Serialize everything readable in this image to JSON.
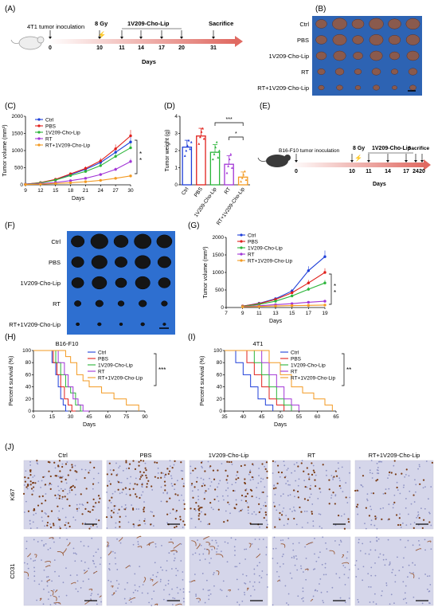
{
  "panel_labels": [
    "(A)",
    "(B)",
    "(C)",
    "(D)",
    "(E)",
    "(F)",
    "(G)",
    "(H)",
    "(I)",
    "(J)"
  ],
  "scheme_a": {
    "inoculation": "4T1 tumor inoculation",
    "dose": "8 Gy",
    "treatment": "1V209-Cho-Lip",
    "end": "Sacrifice",
    "days": [
      "0",
      "10",
      "11",
      "14",
      "17",
      "20",
      "31"
    ],
    "days_label": "Days"
  },
  "scheme_e": {
    "inoculation": "B16-F10 tumor inoculation",
    "dose": "8 Gy",
    "treatment": "1V209-Cho-Lip",
    "end": "Sacrifice",
    "days": [
      "0",
      "10",
      "11",
      "14",
      "17",
      "20",
      "24"
    ],
    "days_label": "Days"
  },
  "groups": [
    "Ctrl",
    "PBS",
    "1V209-Cho-Lip",
    "RT",
    "RT+1V209-Cho-Lip"
  ],
  "colors": {
    "Ctrl": "#1f3fd9",
    "PBS": "#e0201b",
    "1V209-Cho-Lip": "#2bb53a",
    "RT": "#a236d6",
    "RT+1V209-Cho-Lip": "#f39a22",
    "arrow": "#e06a62",
    "photo_bg_b": "#2d63b3",
    "photo_bg_f": "#2e6fd0"
  },
  "photo_b": {
    "rows": [
      "Ctrl",
      "PBS",
      "1V209-Cho-Lip",
      "RT",
      "RT+1V209-Cho-Lip"
    ],
    "tumors": [
      1.0,
      0.95,
      0.85,
      0.6,
      0.45
    ]
  },
  "photo_f": {
    "rows": [
      "Ctrl",
      "PBS",
      "1V209-Cho-Lip",
      "RT",
      "RT+1V209-Cho-Lip"
    ],
    "tumors": [
      1.0,
      0.9,
      0.85,
      0.45,
      0.22
    ]
  },
  "ihc": {
    "columns": [
      "Ctrl",
      "PBS",
      "1V209-Cho-Lip",
      "RT",
      "RT+1V209-Cho-Lip"
    ],
    "rows": [
      "Ki67",
      "CD31"
    ],
    "ki67_density": [
      0.9,
      0.85,
      0.7,
      0.45,
      0.3
    ],
    "cd31_density": [
      0.8,
      0.75,
      0.55,
      0.3,
      0.1
    ]
  },
  "chart_data": [
    {
      "id": "C",
      "type": "line",
      "xlabel": "Days",
      "ylabel": "Tumor volume (mm³)",
      "xlim": [
        9,
        30
      ],
      "ylim": [
        0,
        2000
      ],
      "xticks": [
        "9",
        "12",
        "15",
        "18",
        "21",
        "24",
        "27",
        "30"
      ],
      "yticks": [
        "0",
        "500",
        "1000",
        "1500",
        "2000"
      ],
      "x": [
        9,
        12,
        15,
        18,
        21,
        24,
        27,
        30
      ],
      "series": [
        {
          "name": "Ctrl",
          "values": [
            20,
            60,
            150,
            300,
            450,
            650,
            950,
            1250
          ]
        },
        {
          "name": "PBS",
          "values": [
            20,
            65,
            160,
            320,
            480,
            700,
            1050,
            1430
          ]
        },
        {
          "name": "1V209-Cho-Lip",
          "values": [
            20,
            55,
            140,
            270,
            390,
            560,
            830,
            1080
          ]
        },
        {
          "name": "RT",
          "values": [
            15,
            35,
            70,
            120,
            190,
            300,
            450,
            680
          ]
        },
        {
          "name": "RT+1V209-Cho-Lip",
          "values": [
            10,
            20,
            40,
            60,
            90,
            130,
            190,
            260
          ]
        }
      ],
      "significance": [
        "*",
        "*"
      ],
      "legend": "top-left"
    },
    {
      "id": "D",
      "type": "bar",
      "ylabel": "Tumor weight (g)",
      "ylim": [
        0,
        4
      ],
      "yticks": [
        "0",
        "1",
        "2",
        "3",
        "4"
      ],
      "categories": [
        "Ctrl",
        "PBS",
        "1V209-Cho-Lip",
        "RT",
        "RT+1V209-Cho-Lip"
      ],
      "values": [
        2.2,
        2.85,
        1.9,
        1.2,
        0.45
      ],
      "errors": [
        0.4,
        0.45,
        0.45,
        0.5,
        0.3
      ],
      "points": [
        [
          1.7,
          2.0,
          2.3,
          2.6,
          2.1,
          2.5
        ],
        [
          2.4,
          2.8,
          3.1,
          3.3,
          2.7
        ],
        [
          1.5,
          1.8,
          2.2,
          2.5,
          1.6,
          2.0
        ],
        [
          0.7,
          1.1,
          1.5,
          1.8,
          1.0
        ],
        [
          0.2,
          0.4,
          0.6,
          0.8,
          0.3
        ]
      ],
      "significance": [
        "***",
        "*"
      ]
    },
    {
      "id": "G",
      "type": "line",
      "xlabel": "Days",
      "ylabel": "Tumor volume (mm³)",
      "xlim": [
        7,
        19
      ],
      "ylim": [
        0,
        2000
      ],
      "xticks": [
        "7",
        "9",
        "11",
        "13",
        "15",
        "17",
        "19"
      ],
      "yticks": [
        "0",
        "500",
        "1000",
        "1500",
        "2000"
      ],
      "x": [
        9,
        11,
        13,
        15,
        17,
        19
      ],
      "series": [
        {
          "name": "Ctrl",
          "values": [
            40,
            120,
            250,
            470,
            1050,
            1450
          ]
        },
        {
          "name": "PBS",
          "values": [
            40,
            110,
            230,
            420,
            700,
            1000
          ]
        },
        {
          "name": "1V209-Cho-Lip",
          "values": [
            30,
            90,
            180,
            330,
            520,
            700
          ]
        },
        {
          "name": "RT",
          "values": [
            25,
            50,
            80,
            110,
            150,
            180
          ]
        },
        {
          "name": "RT+1V209-Cho-Lip",
          "values": [
            20,
            30,
            45,
            55,
            60,
            70
          ]
        }
      ],
      "significance": [
        "*",
        "*"
      ],
      "legend": "top-left"
    },
    {
      "id": "H",
      "type": "line",
      "title": "B16-F10",
      "xlabel": "Days",
      "ylabel": "Percent survival (%)",
      "xlim": [
        0,
        90
      ],
      "ylim": [
        0,
        100
      ],
      "xticks": [
        "0",
        "15",
        "30",
        "45",
        "60",
        "75",
        "90"
      ],
      "yticks": [
        "0",
        "20",
        "40",
        "60",
        "80",
        "100"
      ],
      "series": [
        {
          "name": "Ctrl",
          "x": [
            0,
            15,
            18,
            20,
            22,
            24,
            26,
            28
          ],
          "values": [
            100,
            80,
            60,
            40,
            20,
            10,
            0,
            0
          ]
        },
        {
          "name": "PBS",
          "x": [
            0,
            16,
            19,
            22,
            25,
            28,
            31,
            34
          ],
          "values": [
            100,
            80,
            60,
            40,
            20,
            10,
            0,
            0
          ]
        },
        {
          "name": "1V209-Cho-Lip",
          "x": [
            0,
            18,
            22,
            26,
            30,
            34,
            38,
            42
          ],
          "values": [
            100,
            80,
            60,
            40,
            30,
            10,
            0,
            0
          ]
        },
        {
          "name": "RT",
          "x": [
            0,
            20,
            25,
            28,
            32,
            36,
            40,
            45
          ],
          "values": [
            100,
            80,
            60,
            40,
            20,
            10,
            0,
            0
          ]
        },
        {
          "name": "RT+1V209-Cho-Lip",
          "x": [
            0,
            26,
            30,
            35,
            40,
            45,
            55,
            65,
            75,
            85
          ],
          "values": [
            100,
            90,
            80,
            60,
            50,
            40,
            30,
            20,
            10,
            0
          ]
        }
      ],
      "significance": [
        "***"
      ],
      "legend": "top-right"
    },
    {
      "id": "I",
      "type": "line",
      "title": "4T1",
      "xlabel": "Days",
      "ylabel": "Percent survival (%)",
      "xlim": [
        35,
        65
      ],
      "ylim": [
        0,
        100
      ],
      "xticks": [
        "35",
        "40",
        "45",
        "50",
        "55",
        "60",
        "65"
      ],
      "yticks": [
        "0",
        "20",
        "40",
        "60",
        "80",
        "100"
      ],
      "series": [
        {
          "name": "Ctrl",
          "x": [
            35,
            38,
            40,
            42,
            44,
            46,
            48
          ],
          "values": [
            100,
            80,
            60,
            40,
            20,
            10,
            0
          ]
        },
        {
          "name": "PBS",
          "x": [
            35,
            41,
            43,
            45,
            47,
            49,
            51
          ],
          "values": [
            100,
            80,
            60,
            40,
            20,
            10,
            0
          ]
        },
        {
          "name": "1V209-Cho-Lip",
          "x": [
            35,
            43,
            45,
            47,
            49,
            51,
            53
          ],
          "values": [
            100,
            80,
            60,
            40,
            20,
            10,
            0
          ]
        },
        {
          "name": "RT",
          "x": [
            35,
            45,
            47,
            49,
            51,
            53,
            55
          ],
          "values": [
            100,
            80,
            60,
            40,
            20,
            10,
            0
          ]
        },
        {
          "name": "RT+1V209-Cho-Lip",
          "x": [
            35,
            47,
            50,
            53,
            56,
            59,
            62,
            64
          ],
          "values": [
            100,
            80,
            60,
            40,
            30,
            20,
            10,
            0
          ]
        }
      ],
      "significance": [
        "**"
      ],
      "legend": "top-right"
    }
  ]
}
